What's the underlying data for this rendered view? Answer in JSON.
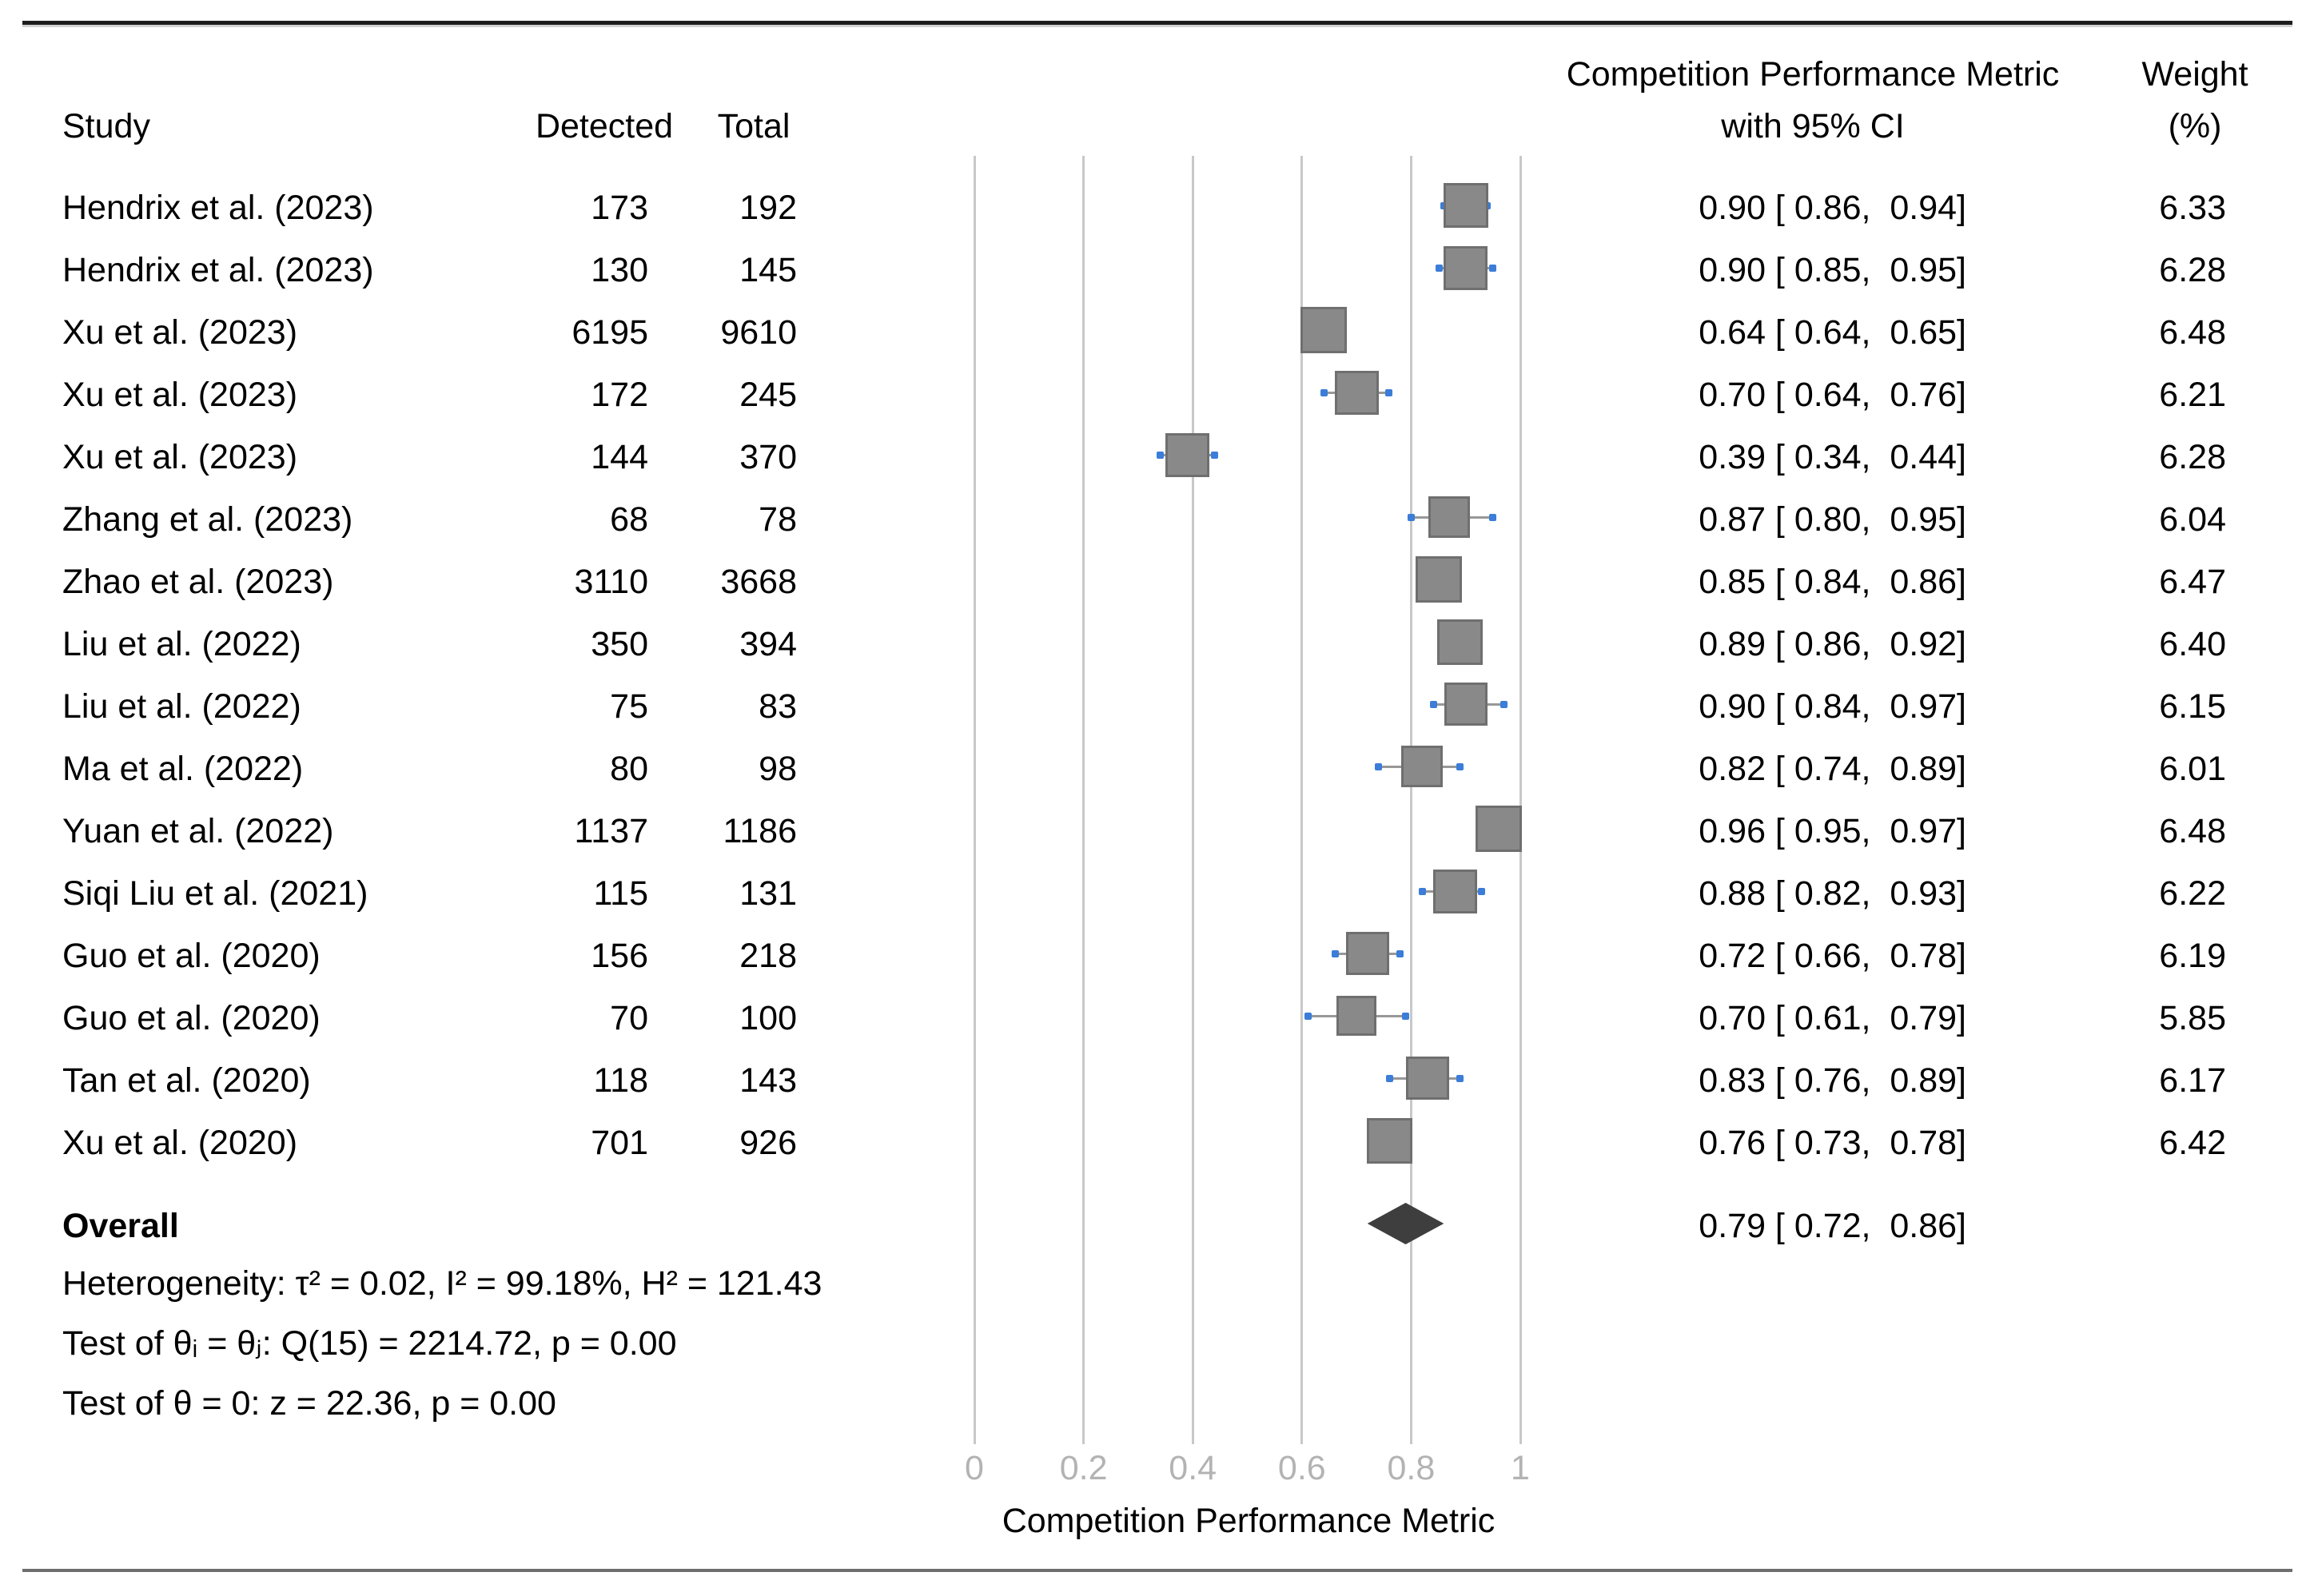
{
  "header": {
    "study": "Study",
    "detected": "Detected",
    "total": "Total",
    "effect_line1": "Competition Performance Metric",
    "effect_line2": "with 95% CI",
    "weight_line1": "Weight",
    "weight_line2": "(%)"
  },
  "chart_data": {
    "type": "forest",
    "x_axis": {
      "label": "Competition Performance Metric",
      "range": [
        0,
        1
      ],
      "ticks": [
        0,
        0.2,
        0.4,
        0.6,
        0.8,
        1
      ],
      "tick_labels": [
        "0",
        "0.2",
        "0.4",
        "0.6",
        "0.8",
        "1"
      ],
      "grid": true
    },
    "studies": [
      {
        "name": "Hendrix et al. (2023)",
        "detected": "173",
        "total": "192",
        "estimate": 0.9,
        "ci_low": 0.86,
        "ci_high": 0.94,
        "ci_label": "0.90 [ 0.86,  0.94]",
        "weight": 6.33,
        "weight_label": "6.33"
      },
      {
        "name": "Hendrix et al. (2023)",
        "detected": "130",
        "total": "145",
        "estimate": 0.9,
        "ci_low": 0.85,
        "ci_high": 0.95,
        "ci_label": "0.90 [ 0.85,  0.95]",
        "weight": 6.28,
        "weight_label": "6.28"
      },
      {
        "name": "Xu et al. (2023)",
        "detected": "6195",
        "total": "9610",
        "estimate": 0.64,
        "ci_low": 0.64,
        "ci_high": 0.65,
        "ci_label": "0.64 [ 0.64,  0.65]",
        "weight": 6.48,
        "weight_label": "6.48"
      },
      {
        "name": "Xu et al. (2023)",
        "detected": "172",
        "total": "245",
        "estimate": 0.7,
        "ci_low": 0.64,
        "ci_high": 0.76,
        "ci_label": "0.70 [ 0.64,  0.76]",
        "weight": 6.21,
        "weight_label": "6.21"
      },
      {
        "name": "Xu et al. (2023)",
        "detected": "144",
        "total": "370",
        "estimate": 0.39,
        "ci_low": 0.34,
        "ci_high": 0.44,
        "ci_label": "0.39 [ 0.34,  0.44]",
        "weight": 6.28,
        "weight_label": "6.28"
      },
      {
        "name": "Zhang et al. (2023)",
        "detected": "68",
        "total": "78",
        "estimate": 0.87,
        "ci_low": 0.8,
        "ci_high": 0.95,
        "ci_label": "0.87 [ 0.80,  0.95]",
        "weight": 6.04,
        "weight_label": "6.04"
      },
      {
        "name": "Zhao et al. (2023)",
        "detected": "3110",
        "total": "3668",
        "estimate": 0.85,
        "ci_low": 0.84,
        "ci_high": 0.86,
        "ci_label": "0.85 [ 0.84,  0.86]",
        "weight": 6.47,
        "weight_label": "6.47"
      },
      {
        "name": "Liu et al. (2022)",
        "detected": "350",
        "total": "394",
        "estimate": 0.89,
        "ci_low": 0.86,
        "ci_high": 0.92,
        "ci_label": "0.89 [ 0.86,  0.92]",
        "weight": 6.4,
        "weight_label": "6.40"
      },
      {
        "name": "Liu et al. (2022)",
        "detected": "75",
        "total": "83",
        "estimate": 0.9,
        "ci_low": 0.84,
        "ci_high": 0.97,
        "ci_label": "0.90 [ 0.84,  0.97]",
        "weight": 6.15,
        "weight_label": "6.15"
      },
      {
        "name": "Ma et al. (2022)",
        "detected": "80",
        "total": "98",
        "estimate": 0.82,
        "ci_low": 0.74,
        "ci_high": 0.89,
        "ci_label": "0.82 [ 0.74,  0.89]",
        "weight": 6.01,
        "weight_label": "6.01"
      },
      {
        "name": "Yuan et al. (2022)",
        "detected": "1137",
        "total": "1186",
        "estimate": 0.96,
        "ci_low": 0.95,
        "ci_high": 0.97,
        "ci_label": "0.96 [ 0.95,  0.97]",
        "weight": 6.48,
        "weight_label": "6.48"
      },
      {
        "name": "Siqi Liu et al. (2021)",
        "detected": "115",
        "total": "131",
        "estimate": 0.88,
        "ci_low": 0.82,
        "ci_high": 0.93,
        "ci_label": "0.88 [ 0.82,  0.93]",
        "weight": 6.22,
        "weight_label": "6.22"
      },
      {
        "name": "Guo et al. (2020)",
        "detected": "156",
        "total": "218",
        "estimate": 0.72,
        "ci_low": 0.66,
        "ci_high": 0.78,
        "ci_label": "0.72 [ 0.66,  0.78]",
        "weight": 6.19,
        "weight_label": "6.19"
      },
      {
        "name": "Guo et al. (2020)",
        "detected": "70",
        "total": "100",
        "estimate": 0.7,
        "ci_low": 0.61,
        "ci_high": 0.79,
        "ci_label": "0.70 [ 0.61,  0.79]",
        "weight": 5.85,
        "weight_label": "5.85"
      },
      {
        "name": "Tan et al. (2020)",
        "detected": "118",
        "total": "143",
        "estimate": 0.83,
        "ci_low": 0.76,
        "ci_high": 0.89,
        "ci_label": "0.83 [ 0.76,  0.89]",
        "weight": 6.17,
        "weight_label": "6.17"
      },
      {
        "name": "Xu et al. (2020)",
        "detected": "701",
        "total": "926",
        "estimate": 0.76,
        "ci_low": 0.73,
        "ci_high": 0.78,
        "ci_label": "0.76 [ 0.73,  0.78]",
        "weight": 6.42,
        "weight_label": "6.42"
      }
    ],
    "overall": {
      "label": "Overall",
      "estimate": 0.79,
      "ci_low": 0.72,
      "ci_high": 0.86,
      "ci_label": "0.79 [ 0.72,  0.86]"
    },
    "stats": [
      "Heterogeneity: τ² = 0.02, I² = 99.18%, H² = 121.43",
      "Test of θᵢ = θⱼ: Q(15) = 2214.72, p = 0.00",
      "Test of θ = 0: z = 22.36, p = 0.00"
    ],
    "legend_position": "none"
  },
  "colors": {
    "square_fill": "#898989",
    "square_border": "#6f6f6f",
    "diamond": "#3e3e3e",
    "gridline": "#c8c8c8",
    "tick_label": "#b3b3b3",
    "ci_line": "#989898",
    "ci_cap": "#3b7dd8",
    "top_rule": "#1d1d1d",
    "bottom_rule": "#6e6e6e"
  }
}
